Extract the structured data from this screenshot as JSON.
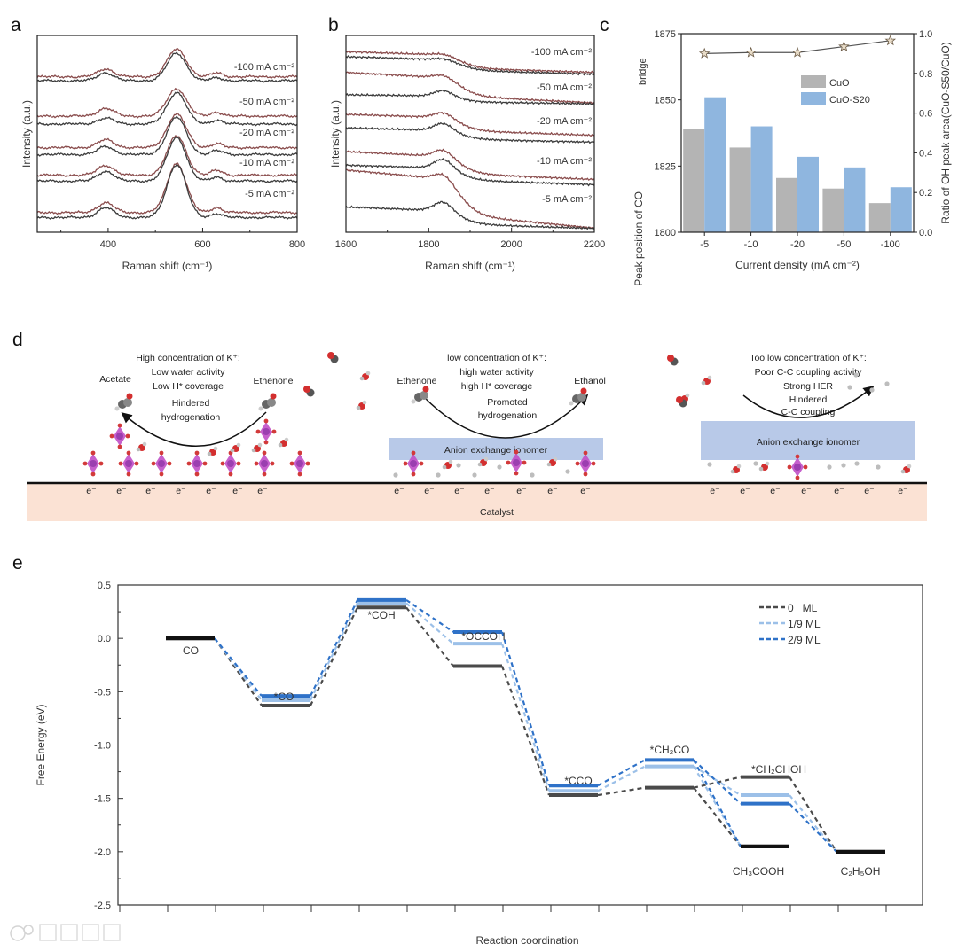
{
  "panel_letters": {
    "a": "a",
    "b": "b",
    "c": "c",
    "d": "d",
    "e": "e"
  },
  "watermark": "大数跨境",
  "colors": {
    "upper_curve": "#8a4d4d",
    "lower_curve": "#3c3c3c",
    "cuo_bar": "#b4b4b4",
    "cuos20_bar": "#8fb6df",
    "ml0": "#4a4a4a",
    "ml19": "#9cc0e8",
    "ml29": "#2f72c8",
    "catalyst": "#fbe2d4",
    "ionomer": "#b8c9e8",
    "blue_text": "#3a86c8",
    "purple_text": "#8a3fb8",
    "red_text": "#c0392b"
  },
  "chart_data": [
    {
      "id": "a",
      "type": "line",
      "xlabel": "Raman shift (cm⁻¹)",
      "ylabel": "Intensity (a.u.)",
      "xlim": [
        250,
        800
      ],
      "ylim": [
        0,
        100
      ],
      "xticks": [
        400,
        600,
        800
      ],
      "xticks_minor": [
        300,
        500,
        700
      ],
      "peaks_cm1": [
        395,
        545,
        630
      ],
      "series": [
        {
          "label": "-100 mA cm⁻²",
          "curves": [
            {
              "base": 79,
              "amps": [
                4,
                14,
                2
              ]
            },
            {
              "base": 77,
              "amps": [
                4,
                14,
                1.5
              ]
            }
          ]
        },
        {
          "label": "-50 mA cm⁻²",
          "curves": [
            {
              "base": 59,
              "amps": [
                4,
                14,
                2
              ]
            },
            {
              "base": 55,
              "amps": [
                3,
                16,
                2
              ]
            }
          ]
        },
        {
          "label": "-20 mA cm⁻²",
          "curves": [
            {
              "base": 43,
              "amps": [
                4,
                17,
                2
              ]
            },
            {
              "base": 39.5,
              "amps": [
                4,
                19,
                2
              ]
            }
          ]
        },
        {
          "label": "-10 mA cm⁻²",
          "curves": [
            {
              "base": 29,
              "amps": [
                5,
                20,
                2.5
              ]
            },
            {
              "base": 26,
              "amps": [
                5,
                22,
                2
              ]
            }
          ]
        },
        {
          "label": "-5 mA cm⁻²",
          "curves": [
            {
              "base": 10,
              "amps": [
                5,
                25,
                2.5
              ]
            },
            {
              "base": 7.5,
              "amps": [
                5,
                27,
                2
              ]
            }
          ]
        }
      ]
    },
    {
      "id": "b",
      "type": "line",
      "xlabel": "Raman shift (cm⁻¹)",
      "ylabel": "Intensity (a.u.)",
      "xlim": [
        1600,
        2200
      ],
      "ylim": [
        0,
        100
      ],
      "xticks": [
        1600,
        1800,
        2000,
        2200
      ],
      "xticks_minor": [
        1700,
        1900,
        2100
      ],
      "peak_cm1": 1835,
      "series": [
        {
          "label": "-100 mA cm⁻²",
          "curves": [
            {
              "start": 92,
              "end": 81,
              "bump": 1
            },
            {
              "start": 89,
              "end": 80.5,
              "bump": 1
            }
          ]
        },
        {
          "label": "-50 mA cm⁻²",
          "curves": [
            {
              "start": 81,
              "end": 66,
              "bump": 2
            },
            {
              "start": 70,
              "end": 65,
              "bump": 3
            }
          ]
        },
        {
          "label": "-20 mA cm⁻²",
          "curves": [
            {
              "start": 60,
              "end": 49,
              "bump": 3
            },
            {
              "start": 53,
              "end": 46,
              "bump": 4
            }
          ]
        },
        {
          "label": "-10 mA cm⁻²",
          "curves": [
            {
              "start": 41,
              "end": 27,
              "bump": 4
            },
            {
              "start": 34,
              "end": 24,
              "bump": 5
            }
          ]
        },
        {
          "label": "-5 mA cm⁻²",
          "curves": [
            {
              "start": 31.5,
              "end": 2,
              "bump": 4
            },
            {
              "start": 13,
              "end": 2,
              "bump": 5
            }
          ]
        }
      ]
    },
    {
      "id": "c",
      "type": "bar",
      "xlabel": "Current density (mA cm⁻²)",
      "ylabel": "Peak position of CO_bridge",
      "ylabel_main": "Peak position of CO",
      "ylabel_sub": "bridge",
      "ylabel_right": "Ratio of OH peak area(CuO-S50/CuO)",
      "categories": [
        "-5",
        "-10",
        "-20",
        "-50",
        "-100"
      ],
      "ylim": [
        1800,
        1875
      ],
      "yticks": [
        1800,
        1825,
        1850,
        1875
      ],
      "ylim_right": [
        0,
        1.0
      ],
      "yticks_right": [
        "0.0",
        "0.2",
        "0.4",
        "0.6",
        "0.8",
        "1.0"
      ],
      "series": [
        {
          "name": "CuO",
          "values": [
            1839,
            1832,
            1820.5,
            1816.5,
            1811
          ]
        },
        {
          "name": "CuO-S20",
          "values": [
            1851,
            1840,
            1828.5,
            1824.5,
            1817
          ]
        }
      ],
      "ratio_series": {
        "name": "Ratio",
        "marker": "star",
        "values": [
          0.9,
          0.905,
          0.905,
          0.935,
          0.965
        ]
      },
      "legend": "upper-right"
    },
    {
      "id": "e",
      "type": "line",
      "title": "",
      "xlabel": "Reaction coordination",
      "ylabel": "Free Energy (eV)",
      "ylim": [
        -2.5,
        0.5
      ],
      "yticks": [
        "-2.5",
        "-2.0",
        "-1.5",
        "-1.0",
        "-0.5",
        "0.0",
        "0.5"
      ],
      "states": [
        {
          "label": "CO",
          "step": 0
        },
        {
          "label": "*CO",
          "step": 1
        },
        {
          "label": "*COH",
          "step": 2
        },
        {
          "label": "*OCCOH",
          "step": 3
        },
        {
          "label": "*CCO",
          "step": 4
        },
        {
          "label": "*CH₂CO",
          "step": 5
        },
        {
          "label": "*CH₂CHOH",
          "step": 6
        },
        {
          "label": "CH₃COOH",
          "step": 6
        },
        {
          "label": "C₂H₅OH",
          "step": 7
        }
      ],
      "series": [
        {
          "name": "0   ML",
          "energies": [
            0,
            -0.63,
            0.29,
            -0.26,
            -1.47,
            -1.4,
            -1.3,
            -1.95,
            -2.0
          ]
        },
        {
          "name": "1/9 ML",
          "energies": [
            0,
            -0.58,
            0.33,
            -0.05,
            -1.43,
            -1.2,
            -1.47,
            -1.95,
            -2.0
          ]
        },
        {
          "name": "2/9 ML",
          "energies": [
            0,
            -0.54,
            0.36,
            0.06,
            -1.38,
            -1.14,
            -1.55,
            -1.95,
            -2.0
          ]
        }
      ],
      "connections": [
        [
          0,
          1
        ],
        [
          1,
          2
        ],
        [
          2,
          3
        ],
        [
          3,
          4
        ],
        [
          4,
          5
        ],
        [
          5,
          6
        ],
        [
          5,
          7
        ],
        [
          6,
          8
        ]
      ],
      "legend": "top-right"
    }
  ],
  "scheme": {
    "left": {
      "title": "High concentration of K⁺:",
      "line1": "Low water activity",
      "line2": "Low H* coverage",
      "product_left": "Acetate",
      "product_right": "Ethenone",
      "arrow1": "Hindered",
      "arrow2": "hydrogenation"
    },
    "middle": {
      "title": "low concentration of K⁺:",
      "line1": "high water activity",
      "line2": "high H* coverage",
      "product_left": "Ethenone",
      "product_right": "Ethanol",
      "arrow1": "Promoted",
      "arrow2": "hydrogenation",
      "ionomer": "Anion exchange ionomer"
    },
    "right": {
      "title": "Too low concentration of K⁺:",
      "line1": "Poor C-C coupling activity",
      "line2": "Strong HER",
      "arrow1": "Hindered",
      "arrow2": "C-C coupling",
      "ionomer": "Anion exchange ionomer"
    },
    "catalyst": "Catalyst",
    "electron": "e⁻"
  }
}
